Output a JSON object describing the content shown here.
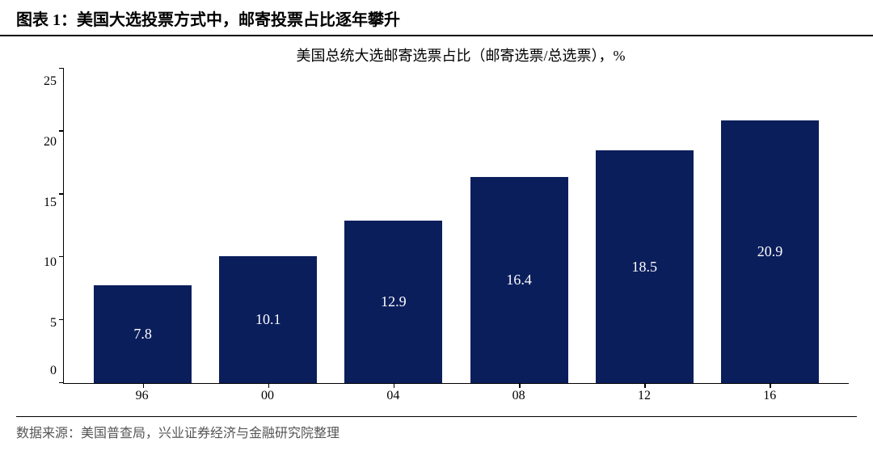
{
  "header": {
    "title": "图表 1：美国大选投票方式中，邮寄投票占比逐年攀升"
  },
  "chart": {
    "type": "bar",
    "title": "美国总统大选邮寄选票占比（邮寄选票/总选票），%",
    "categories": [
      "96",
      "00",
      "04",
      "08",
      "12",
      "16"
    ],
    "values": [
      7.8,
      10.1,
      12.9,
      16.4,
      18.5,
      20.9
    ],
    "value_labels": [
      "7.8",
      "10.1",
      "12.9",
      "16.4",
      "18.5",
      "20.9"
    ],
    "bar_color": "#0b1e5c",
    "bar_label_color": "#ffffff",
    "ylim": [
      0,
      25
    ],
    "yticks": [
      25,
      20,
      15,
      10,
      5,
      0
    ],
    "axis_color": "#000000",
    "background_color": "#ffffff",
    "title_fontsize": 18,
    "label_fontsize": 16,
    "bar_label_fontsize": 18,
    "bar_width_ratio": 0.78
  },
  "footer": {
    "source": "数据来源：美国普查局，兴业证券经济与金融研究院整理"
  }
}
